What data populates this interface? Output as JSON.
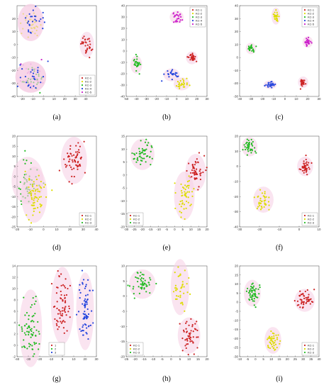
{
  "colors": {
    "KC-1": "#cc2222",
    "KC-2": "#dddd00",
    "KC-3": "#22bb22",
    "KC-4": "#2244dd",
    "KC-5": "#cc22cc",
    "axis": "#444444",
    "halo": "#f6d2e6"
  },
  "chart_data": [
    {
      "id": "a",
      "caption": "(a)",
      "type": "scatter",
      "xlim": [
        -25,
        50
      ],
      "ylim": [
        -40,
        30
      ],
      "xticks": [
        -20,
        -10,
        0,
        10,
        20,
        30,
        40
      ],
      "yticks": [
        -40,
        -30,
        -20,
        -10,
        0,
        10,
        20
      ],
      "legend": [
        "KC-1",
        "KC-2",
        "KC-3",
        "KC-4",
        "KC-5"
      ],
      "legend_position": "bottom-right",
      "clusters": [
        {
          "series": "KC-1",
          "cx": 41,
          "cy": 0,
          "sx": 2.5,
          "sy": 4,
          "n": 30
        },
        {
          "series": "KC-2",
          "cx": -12,
          "cy": 17,
          "sx": 5,
          "sy": 6,
          "n": 35
        },
        {
          "series": "KC-4",
          "cx": -12,
          "cy": 17,
          "sx": 5,
          "sy": 6,
          "n": 25
        },
        {
          "series": "KC-5",
          "cx": -12,
          "cy": -25,
          "sx": 6,
          "sy": 5,
          "n": 25
        },
        {
          "series": "KC-3",
          "cx": -12,
          "cy": -25,
          "sx": 6,
          "sy": 5,
          "n": 25
        },
        {
          "series": "KC-4",
          "cx": -12,
          "cy": -25,
          "sx": 6,
          "sy": 5,
          "n": 25
        }
      ]
    },
    {
      "id": "b",
      "caption": "(b)",
      "type": "scatter",
      "xlim": [
        -50,
        30
      ],
      "ylim": [
        -40,
        40
      ],
      "xticks": [
        -50,
        -40,
        -30,
        -20,
        -10,
        0,
        10,
        20,
        30
      ],
      "yticks": [
        -40,
        -30,
        -20,
        -10,
        0,
        10,
        20,
        30,
        40
      ],
      "legend": [
        "KC-1",
        "KC-2",
        "KC-3",
        "KC-4",
        "KC-5"
      ],
      "legend_position": "top-right",
      "clusters": [
        {
          "series": "KC-1",
          "cx": 15,
          "cy": -6,
          "sx": 2,
          "sy": 2,
          "n": 30
        },
        {
          "series": "KC-2",
          "cx": 5,
          "cy": -29,
          "sx": 3,
          "sy": 2,
          "n": 25
        },
        {
          "series": "KC-3",
          "cx": -40,
          "cy": -12,
          "sx": 2,
          "sy": 3,
          "n": 25
        },
        {
          "series": "KC-4",
          "cx": -5,
          "cy": -21,
          "sx": 3,
          "sy": 2,
          "n": 25
        },
        {
          "series": "KC-5",
          "cx": 0,
          "cy": 30,
          "sx": 2.5,
          "sy": 2,
          "n": 25
        }
      ]
    },
    {
      "id": "c",
      "caption": "(c)",
      "type": "scatter",
      "xlim": [
        -40,
        30
      ],
      "ylim": [
        -30,
        40
      ],
      "xticks": [
        -40,
        -30,
        -20,
        -10,
        0,
        10,
        20,
        30
      ],
      "yticks": [
        -30,
        -20,
        -10,
        0,
        10,
        20,
        30,
        40
      ],
      "legend": [
        "KC-1",
        "KC-2",
        "KC-3",
        "KC-4",
        "KC-5"
      ],
      "legend_position": "top-right",
      "clusters": [
        {
          "series": "KC-1",
          "cx": 16,
          "cy": -19,
          "sx": 1.5,
          "sy": 1.5,
          "n": 25
        },
        {
          "series": "KC-2",
          "cx": -8,
          "cy": 32,
          "sx": 1.2,
          "sy": 2.5,
          "n": 25
        },
        {
          "series": "KC-3",
          "cx": -30,
          "cy": 7,
          "sx": 1.5,
          "sy": 1.5,
          "n": 25
        },
        {
          "series": "KC-4",
          "cx": -13,
          "cy": -21,
          "sx": 2,
          "sy": 1,
          "n": 25
        },
        {
          "series": "KC-5",
          "cx": 20,
          "cy": 12,
          "sx": 1.5,
          "sy": 1.5,
          "n": 25
        }
      ]
    },
    {
      "id": "d",
      "caption": "(d)",
      "type": "scatter",
      "xlim": [
        -20,
        40
      ],
      "ylim": [
        -25,
        20
      ],
      "xticks": [
        -20,
        -10,
        0,
        10,
        20,
        30,
        40
      ],
      "yticks": [
        -25,
        -20,
        -15,
        -10,
        -5,
        0,
        5,
        10,
        15,
        20
      ],
      "legend": [
        "KC-1",
        "KC-2",
        "KC-3"
      ],
      "legend_position": "bottom-right",
      "clusters": [
        {
          "series": "KC-1",
          "cx": 23,
          "cy": 8,
          "sx": 4,
          "sy": 5,
          "n": 60
        },
        {
          "series": "KC-3",
          "cx": -12,
          "cy": -2,
          "sx": 5,
          "sy": 5,
          "n": 50
        },
        {
          "series": "KC-2",
          "cx": -7,
          "cy": -9,
          "sx": 4,
          "sy": 6,
          "n": 60
        }
      ]
    },
    {
      "id": "e",
      "caption": "(e)",
      "type": "scatter",
      "xlim": [
        -30,
        20
      ],
      "ylim": [
        -20,
        15
      ],
      "xticks": [
        -30,
        -25,
        -20,
        -15,
        -10,
        -5,
        0,
        5,
        10,
        15,
        20
      ],
      "yticks": [
        -20,
        -15,
        -10,
        -5,
        0,
        5,
        10,
        15
      ],
      "legend": [
        "KC-1",
        "KC-2",
        "KC-3"
      ],
      "legend_position": "bottom-left",
      "clusters": [
        {
          "series": "KC-1",
          "cx": 13,
          "cy": 1,
          "sx": 2.5,
          "sy": 3,
          "n": 50
        },
        {
          "series": "KC-2",
          "cx": 6,
          "cy": -8,
          "sx": 2.5,
          "sy": 4,
          "n": 50
        },
        {
          "series": "KC-3",
          "cx": -20,
          "cy": 8,
          "sx": 3,
          "sy": 2.5,
          "n": 50
        }
      ]
    },
    {
      "id": "f",
      "caption": "(f)",
      "type": "scatter",
      "xlim": [
        -30,
        10
      ],
      "ylim": [
        -40,
        20
      ],
      "xticks": [
        -30,
        -20,
        -10,
        0,
        10
      ],
      "yticks": [
        -40,
        -30,
        -20,
        -10,
        0,
        10,
        20
      ],
      "legend": [
        "KC-1",
        "KC-2",
        "KC-3"
      ],
      "legend_position": "bottom-right",
      "clusters": [
        {
          "series": "KC-1",
          "cx": 3,
          "cy": 0,
          "sx": 1.5,
          "sy": 2.5,
          "n": 40
        },
        {
          "series": "KC-2",
          "cx": -18,
          "cy": -22,
          "sx": 2,
          "sy": 3.5,
          "n": 40
        },
        {
          "series": "KC-3",
          "cx": -25,
          "cy": 13,
          "sx": 1.5,
          "sy": 2.5,
          "n": 40
        }
      ]
    },
    {
      "id": "g",
      "caption": "(g)",
      "type": "scatter",
      "xlim": [
        -40,
        30
      ],
      "ylim": [
        -2,
        14
      ],
      "xticks": [
        -40,
        -30,
        -20,
        -10,
        0,
        10,
        20,
        30
      ],
      "yticks": [
        -2,
        0,
        2,
        4,
        6,
        8,
        10,
        12,
        14
      ],
      "legend": [
        "1",
        "2",
        "3"
      ],
      "legend_position": "bottom-center",
      "series_colors": [
        "#cc2222",
        "#22bb22",
        "#2244dd"
      ],
      "clusters": [
        {
          "series": "3",
          "cx": 20,
          "cy": 6,
          "sx": 3,
          "sy": 3,
          "n": 70
        },
        {
          "series": "2",
          "cx": -28,
          "cy": 3,
          "sx": 4,
          "sy": 3,
          "n": 70
        },
        {
          "series": "1",
          "cx": 0,
          "cy": 7,
          "sx": 4,
          "sy": 3,
          "n": 70
        }
      ]
    },
    {
      "id": "h",
      "caption": "(h)",
      "type": "scatter",
      "xlim": [
        -25,
        20
      ],
      "ylim": [
        -20,
        10
      ],
      "xticks": [
        -25,
        -20,
        -15,
        -10,
        -5,
        0,
        5,
        10,
        15,
        20
      ],
      "yticks": [
        -20,
        -15,
        -10,
        -5,
        0,
        5,
        10
      ],
      "legend": [
        "KC-1",
        "KC-2",
        "KC-3"
      ],
      "legend_position": "bottom-left",
      "clusters": [
        {
          "series": "KC-1",
          "cx": 10,
          "cy": -13,
          "sx": 2.5,
          "sy": 2.5,
          "n": 50
        },
        {
          "series": "KC-3",
          "cx": -16,
          "cy": 4,
          "sx": 3,
          "sy": 2,
          "n": 50
        },
        {
          "series": "KC-2",
          "cx": 5,
          "cy": 3,
          "sx": 2,
          "sy": 4,
          "n": 40
        }
      ]
    },
    {
      "id": "i",
      "caption": "(i)",
      "type": "scatter",
      "xlim": [
        -10,
        40
      ],
      "ylim": [
        -30,
        20
      ],
      "xticks": [
        -10,
        -5,
        0,
        5,
        10,
        15,
        20,
        25,
        30,
        35,
        40
      ],
      "yticks": [
        -30,
        -25,
        -20,
        -15,
        -10,
        -5,
        0,
        5,
        10,
        15,
        20
      ],
      "legend": [
        "KC-1",
        "KC-2",
        "KC-3"
      ],
      "legend_position": "bottom-right",
      "clusters": [
        {
          "series": "KC-1",
          "cx": 31,
          "cy": 1,
          "sx": 2.5,
          "sy": 2.5,
          "n": 50
        },
        {
          "series": "KC-2",
          "cx": 11,
          "cy": -21,
          "sx": 2,
          "sy": 3,
          "n": 45
        },
        {
          "series": "KC-3",
          "cx": -2,
          "cy": 5,
          "sx": 2,
          "sy": 3,
          "n": 50
        }
      ]
    }
  ]
}
